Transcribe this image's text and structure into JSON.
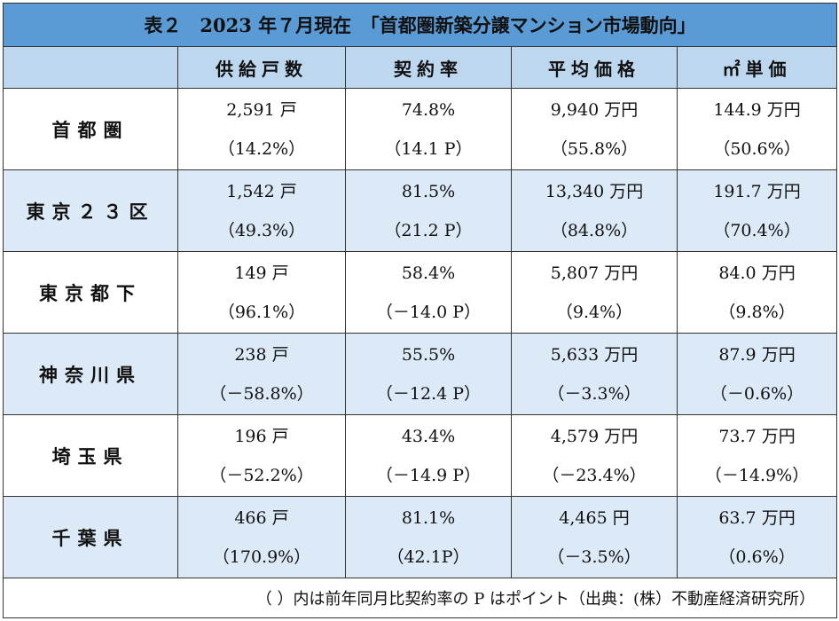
{
  "title": "表２　2023 年７月現在　「首都圏新築分譲マンション市場動向」",
  "columns": [
    "",
    "供給戸数",
    "契約率",
    "平均価格",
    "㎡単価"
  ],
  "rows": [
    {
      "label": "首都圏",
      "cells": [
        [
          "2,591 戸",
          "（14.2%）"
        ],
        [
          "74.8%",
          "（14.1 P）"
        ],
        [
          "9,940 万円",
          "（55.8%）"
        ],
        [
          "144.9 万円",
          "（50.6%）"
        ]
      ]
    },
    {
      "label": "東京２３区",
      "cells": [
        [
          "1,542 戸",
          "（49.3%）"
        ],
        [
          "81.5%",
          "（21.2 P）"
        ],
        [
          "13,340 万円",
          "（84.8%）"
        ],
        [
          "191.7 万円",
          "（70.4%）"
        ]
      ]
    },
    {
      "label": "東京都下",
      "cells": [
        [
          "149 戸",
          "（96.1%）"
        ],
        [
          "58.4%",
          "（－14.0 P）"
        ],
        [
          "5,807 万円",
          "（9.4%）"
        ],
        [
          "84.0 万円",
          "（9.8%）"
        ]
      ]
    },
    {
      "label": "神奈川県",
      "cells": [
        [
          "238 戸",
          "（－58.8%）"
        ],
        [
          "55.5%",
          "（－12.4 P）"
        ],
        [
          "5,633 万円",
          "（－3.3%）"
        ],
        [
          "87.9 万円",
          "（－0.6%）"
        ]
      ]
    },
    {
      "label": "埼玉県",
      "cells": [
        [
          "196 戸",
          "（－52.2%）"
        ],
        [
          "43.4%",
          "（－14.9 P）"
        ],
        [
          "4,579 万円",
          "（－23.4%）"
        ],
        [
          "73.7 万円",
          "（－14.9%）"
        ]
      ]
    },
    {
      "label": "千葉県",
      "cells": [
        [
          "466 戸",
          "（170.9%）"
        ],
        [
          "81.1%",
          "（42.1P）"
        ],
        [
          "4,465 円",
          "（－3.5%）"
        ],
        [
          "63.7 万円",
          "（0.6%）"
        ]
      ]
    }
  ],
  "note": "（ ）内は前年同月比契約率の P はポイント（出典：(株）不動産経済研究所）",
  "colors": {
    "title_bg": "#5b9bd5",
    "header_bg": "#bdd7ee",
    "shade_bg": "#dce9f6"
  }
}
